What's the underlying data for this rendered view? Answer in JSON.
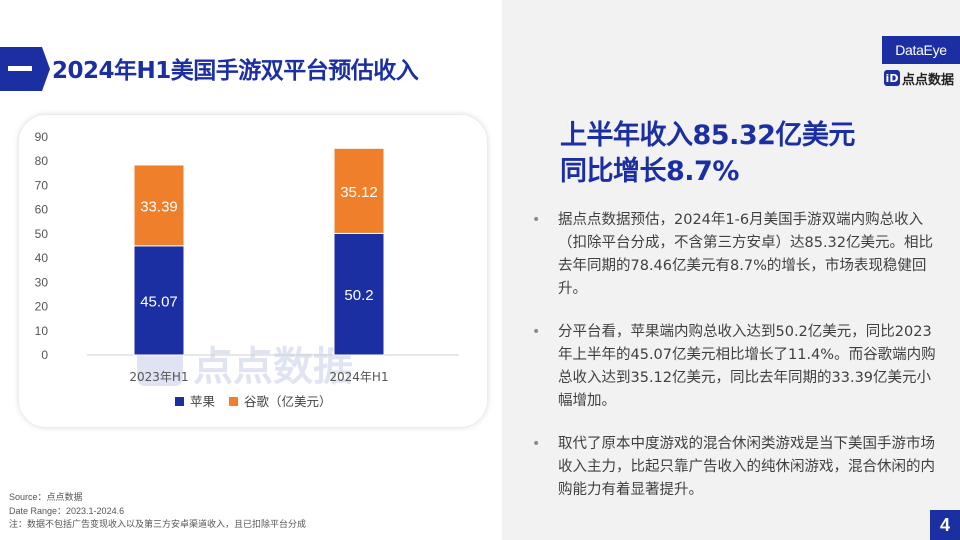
{
  "title": "2024年H1美国手游双平台预估收入",
  "logo": {
    "brand": "DataEye",
    "sub": "点点数据",
    "mark": "iD"
  },
  "watermark": "点点数据",
  "headline": {
    "line1": "上半年收入85.32亿美元",
    "line2": "同比增长8.7%"
  },
  "bullets": [
    "据点点数据预估，2024年1-6月美国手游双端内购总收入（扣除平台分成，不含第三方安卓）达85.32亿美元。相比去年同期的78.46亿美元有8.7%的增长，市场表现稳健回升。",
    "分平台看，苹果端内购总收入达到50.2亿美元，同比2023年上半年的45.07亿美元相比增长了11.4%。而谷歌端内购总收入达到35.12亿美元，同比去年同期的33.39亿美元小幅增加。",
    "取代了原本中度游戏的混合休闲类游戏是当下美国手游市场收入主力，比起只靠广告收入的纯休闲游戏，混合休闲的内购能力有着显著提升。"
  ],
  "footer": {
    "source": "Source：点点数据",
    "range": "Date Range：2023.1-2024.6",
    "note": "注：数据不包括广告变现收入以及第三方安卓渠道收入，且已扣除平台分成"
  },
  "page_number": "4",
  "chart_data": {
    "type": "bar",
    "stacked": true,
    "categories": [
      "2023年H1",
      "2024年H1"
    ],
    "series": [
      {
        "name": "苹果",
        "values": [
          45.07,
          50.2
        ],
        "color": "#1b2fa3",
        "label_color": "#ffffff"
      },
      {
        "name": "谷歌（亿美元）",
        "values": [
          33.39,
          35.12
        ],
        "color": "#f07f2c",
        "label_color": "#ffffff"
      }
    ],
    "data_labels": [
      [
        "45.07",
        "50.2"
      ],
      [
        "33.39",
        "35.12"
      ]
    ],
    "yticks": [
      0,
      10,
      20,
      30,
      40,
      50,
      60,
      70,
      80,
      90
    ],
    "ylim": [
      0,
      90
    ],
    "legend": "bottom",
    "grid": false,
    "title": "",
    "xlabel": "",
    "ylabel": ""
  }
}
